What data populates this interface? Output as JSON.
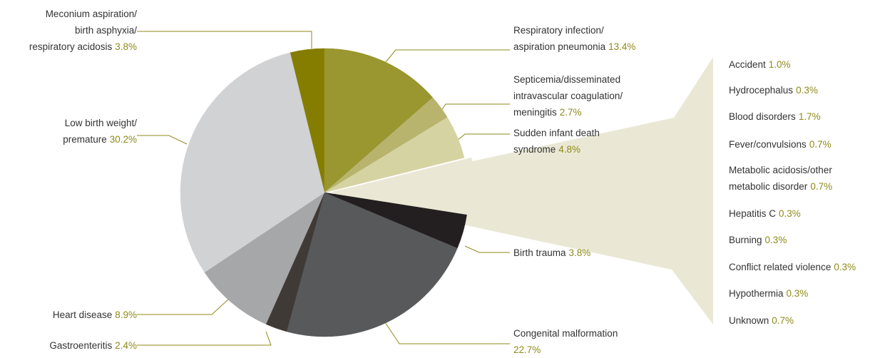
{
  "chart_data": {
    "type": "pie",
    "categories": [
      "Meconium aspiration/\nbirth asphyxia/\nrespiratory acidosis",
      "Respiratory infection/\naspiration pneumonia",
      "Septicemia/disseminated\nintravascular coagulation/\nmeningitis",
      "Sudden infant death\nsyndrome",
      "Birth trauma",
      "Congenital malformation",
      "Gastroenteritis",
      "Heart disease",
      "Low birth weight/\npremature"
    ],
    "values": [
      3.8,
      13.4,
      2.7,
      4.8,
      3.8,
      22.7,
      2.4,
      8.9,
      30.2
    ],
    "value_labels": [
      "3.8%",
      "13.4%",
      "2.7%",
      "4.8%",
      "3.8%",
      "22.7%",
      "2.4%",
      "8.9%",
      "30.2%"
    ],
    "colors": [
      "#857d00",
      "#9a9630",
      "#b8b46e",
      "#d6d3a3",
      "#231f20",
      "#58595b",
      "#403a36",
      "#a6a7a9",
      "#d1d2d4"
    ],
    "breakdown": {
      "categories": [
        "Accident",
        "Hydrocephalus",
        "Blood disorders",
        "Fever/convulsions",
        "Metabolic acidosis/other\nmetabolic disorder",
        "Hepatitis C",
        "Burning",
        "Conflict related violence",
        "Hypothermia",
        "Unknown"
      ],
      "values": [
        1.0,
        0.3,
        1.7,
        0.7,
        0.7,
        0.3,
        0.3,
        0.3,
        0.3,
        0.7
      ],
      "value_labels": [
        "1.0%",
        "0.3%",
        "1.7%",
        "0.7%",
        "0.7%",
        "0.3%",
        "0.3%",
        "0.3%",
        "0.3%",
        "0.7%"
      ],
      "color": "#eae8d5"
    }
  }
}
